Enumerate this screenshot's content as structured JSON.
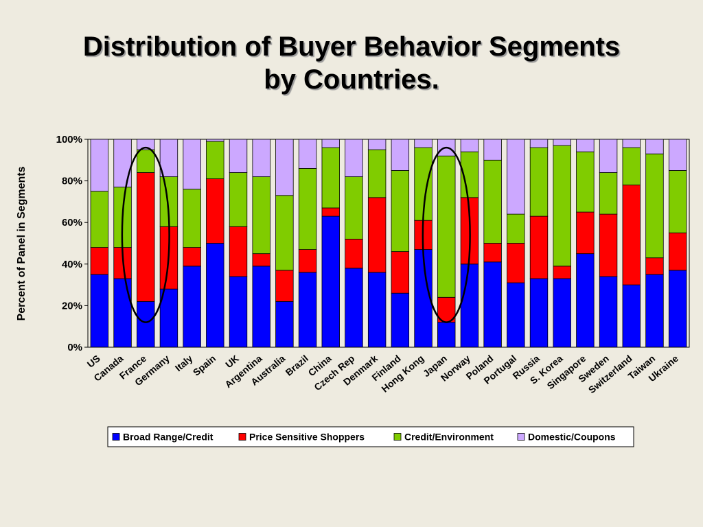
{
  "slide": {
    "title_line1": "Distribution of Buyer Behavior Segments",
    "title_line2": "by Countries."
  },
  "colors": {
    "background": "#EEEBE0",
    "broad_range_credit": "#0000FF",
    "price_sensitive_shoppers": "#FF0000",
    "credit_environment": "#80CC00",
    "domestic_coupons": "#CCA8FF"
  },
  "chart_data": {
    "type": "bar",
    "stacked": true,
    "percent_stacked": true,
    "title": "",
    "xlabel": "",
    "ylabel": "Percent of Panel in Segments",
    "ylim": [
      0,
      100
    ],
    "yticks": [
      "0%",
      "20%",
      "40%",
      "60%",
      "80%",
      "100%"
    ],
    "grid": false,
    "legend_position": "bottom",
    "categories": [
      "US",
      "Canada",
      "France",
      "Germany",
      "Italy",
      "Spain",
      "UK",
      "Argentina",
      "Australia",
      "Brazil",
      "China",
      "Czech Rep",
      "Denmark",
      "Finland",
      "Hong Kong",
      "Japan",
      "Norway",
      "Poland",
      "Portugal",
      "Russia",
      "S. Korea",
      "Singapore",
      "Sweden",
      "Switzerland",
      "Taiwan",
      "Ukraine"
    ],
    "series": [
      {
        "name": "Broad Range/Credit",
        "color": "#0000FF",
        "values": [
          35,
          33,
          22,
          28,
          39,
          50,
          34,
          39,
          22,
          36,
          63,
          38,
          36,
          26,
          47,
          12,
          40,
          41,
          31,
          33,
          33,
          45,
          34,
          30,
          35,
          37
        ]
      },
      {
        "name": "Price Sensitive Shoppers",
        "color": "#FF0000",
        "values": [
          13,
          15,
          62,
          30,
          9,
          31,
          24,
          6,
          15,
          11,
          4,
          14,
          36,
          20,
          14,
          12,
          32,
          9,
          19,
          30,
          6,
          20,
          30,
          48,
          8,
          18
        ]
      },
      {
        "name": "Credit/Environment",
        "color": "#80CC00",
        "values": [
          27,
          29,
          11,
          24,
          28,
          18,
          26,
          37,
          36,
          39,
          29,
          30,
          23,
          39,
          35,
          68,
          22,
          40,
          14,
          33,
          58,
          29,
          20,
          18,
          50,
          30
        ]
      },
      {
        "name": "Domestic/Coupons",
        "color": "#CCA8FF",
        "values": [
          25,
          23,
          5,
          18,
          24,
          1,
          16,
          18,
          27,
          14,
          4,
          18,
          5,
          15,
          4,
          8,
          6,
          10,
          36,
          4,
          3,
          6,
          16,
          4,
          7,
          15
        ]
      }
    ],
    "highlighted_categories": [
      "France",
      "Japan"
    ]
  }
}
